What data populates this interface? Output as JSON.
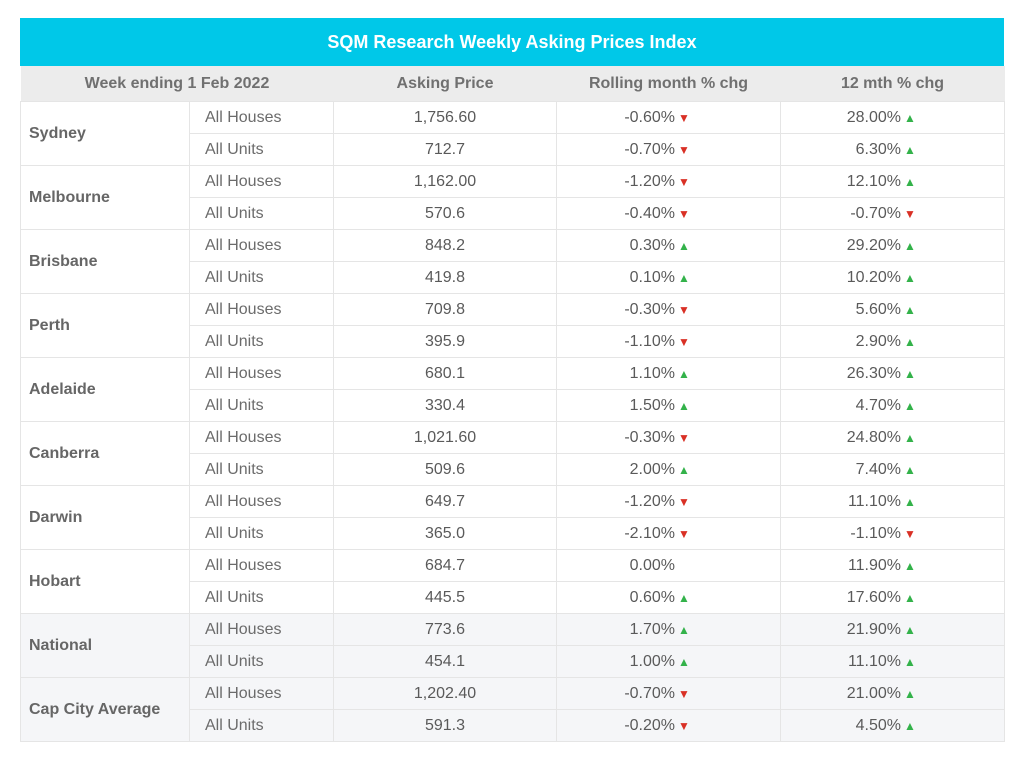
{
  "title": "SQM Research Weekly Asking Prices Index",
  "colors": {
    "header": "#00c8e8",
    "up": "#33b24a",
    "down": "#d93025"
  },
  "headers": {
    "week": "Week ending 1 Feb 2022",
    "price": "Asking Price",
    "rolling": "Rolling month % chg",
    "annual": "12 mth % chg"
  },
  "rows": [
    {
      "city": "Sydney",
      "houses": {
        "type": "All Houses",
        "price": "1,756.60",
        "rolling": "-0.60%",
        "rolling_dir": "down",
        "annual": "28.00%",
        "annual_dir": "up"
      },
      "units": {
        "type": "All Units",
        "price": "712.7",
        "rolling": "-0.70%",
        "rolling_dir": "down",
        "annual": "6.30%",
        "annual_dir": "up"
      }
    },
    {
      "city": "Melbourne",
      "houses": {
        "type": "All Houses",
        "price": "1,162.00",
        "rolling": "-1.20%",
        "rolling_dir": "down",
        "annual": "12.10%",
        "annual_dir": "up"
      },
      "units": {
        "type": "All Units",
        "price": "570.6",
        "rolling": "-0.40%",
        "rolling_dir": "down",
        "annual": "-0.70%",
        "annual_dir": "down"
      }
    },
    {
      "city": "Brisbane",
      "houses": {
        "type": "All Houses",
        "price": "848.2",
        "rolling": "0.30%",
        "rolling_dir": "up",
        "annual": "29.20%",
        "annual_dir": "up"
      },
      "units": {
        "type": "All Units",
        "price": "419.8",
        "rolling": "0.10%",
        "rolling_dir": "up",
        "annual": "10.20%",
        "annual_dir": "up"
      }
    },
    {
      "city": "Perth",
      "houses": {
        "type": "All Houses",
        "price": "709.8",
        "rolling": "-0.30%",
        "rolling_dir": "down",
        "annual": "5.60%",
        "annual_dir": "up"
      },
      "units": {
        "type": "All Units",
        "price": "395.9",
        "rolling": "-1.10%",
        "rolling_dir": "down",
        "annual": "2.90%",
        "annual_dir": "up"
      }
    },
    {
      "city": "Adelaide",
      "houses": {
        "type": "All Houses",
        "price": "680.1",
        "rolling": "1.10%",
        "rolling_dir": "up",
        "annual": "26.30%",
        "annual_dir": "up"
      },
      "units": {
        "type": "All Units",
        "price": "330.4",
        "rolling": "1.50%",
        "rolling_dir": "up",
        "annual": "4.70%",
        "annual_dir": "up"
      }
    },
    {
      "city": "Canberra",
      "houses": {
        "type": "All Houses",
        "price": "1,021.60",
        "rolling": "-0.30%",
        "rolling_dir": "down",
        "annual": "24.80%",
        "annual_dir": "up"
      },
      "units": {
        "type": "All Units",
        "price": "509.6",
        "rolling": "2.00%",
        "rolling_dir": "up",
        "annual": "7.40%",
        "annual_dir": "up"
      }
    },
    {
      "city": "Darwin",
      "houses": {
        "type": "All Houses",
        "price": "649.7",
        "rolling": "-1.20%",
        "rolling_dir": "down",
        "annual": "11.10%",
        "annual_dir": "up"
      },
      "units": {
        "type": "All Units",
        "price": "365.0",
        "rolling": "-2.10%",
        "rolling_dir": "down",
        "annual": "-1.10%",
        "annual_dir": "down"
      }
    },
    {
      "city": "Hobart",
      "houses": {
        "type": "All Houses",
        "price": "684.7",
        "rolling": "0.00%",
        "rolling_dir": "none",
        "annual": "11.90%",
        "annual_dir": "up"
      },
      "units": {
        "type": "All Units",
        "price": "445.5",
        "rolling": "0.60%",
        "rolling_dir": "up",
        "annual": "17.60%",
        "annual_dir": "up"
      }
    },
    {
      "city": "National",
      "shaded": true,
      "houses": {
        "type": "All Houses",
        "price": "773.6",
        "rolling": "1.70%",
        "rolling_dir": "up",
        "annual": "21.90%",
        "annual_dir": "up"
      },
      "units": {
        "type": "All Units",
        "price": "454.1",
        "rolling": "1.00%",
        "rolling_dir": "up",
        "annual": "11.10%",
        "annual_dir": "up"
      }
    },
    {
      "city": "Cap City Average",
      "shaded": true,
      "houses": {
        "type": "All Houses",
        "price": "1,202.40",
        "rolling": "-0.70%",
        "rolling_dir": "down",
        "annual": "21.00%",
        "annual_dir": "up"
      },
      "units": {
        "type": "All Units",
        "price": "591.3",
        "rolling": "-0.20%",
        "rolling_dir": "down",
        "annual": "4.50%",
        "annual_dir": "up"
      }
    }
  ]
}
